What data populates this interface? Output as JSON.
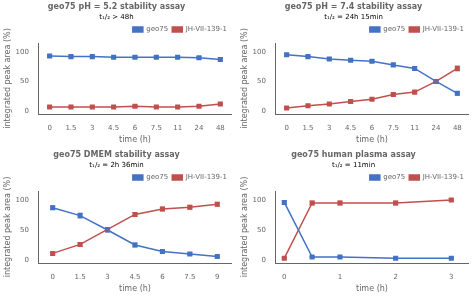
{
  "chart_data": [
    {
      "type": "line",
      "title": "geo75 pH = 5.2 stability assay",
      "annotation": "t₁/₂ > 48h",
      "x_label": "time (h)",
      "y_label": "integrated peak area (%)",
      "categories": [
        "0",
        "1.5",
        "3",
        "4.5",
        "6",
        "7.5",
        "11",
        "24",
        "48"
      ],
      "series": [
        {
          "name": "geo75",
          "color": "#4472C4",
          "marker": "square",
          "values": [
            93,
            92,
            92,
            91,
            91,
            91,
            91,
            90,
            87
          ],
          "errors": [
            2,
            2,
            2,
            2,
            2,
            2,
            2,
            2,
            3
          ]
        },
        {
          "name": "JH-VII-139-1",
          "color": "#C0504D",
          "marker": "square",
          "values": [
            7,
            7,
            7,
            7,
            8,
            7,
            7,
            8,
            12
          ],
          "errors": [
            1,
            1,
            1,
            1,
            2,
            1,
            1,
            1,
            2
          ]
        }
      ],
      "ylim": [
        -5,
        115
      ],
      "yticks": [
        0,
        50,
        100
      ],
      "grid": false,
      "legend": "upper right"
    },
    {
      "type": "line",
      "title": "geo75 pH = 7.4 stability assay",
      "annotation": "t₁/₂ = 24h 15min",
      "x_label": "time (h)",
      "y_label": "integrated peak area (%)",
      "categories": [
        "0",
        "1.5",
        "3",
        "4.5",
        "6",
        "7.5",
        "11",
        "24",
        "48"
      ],
      "series": [
        {
          "name": "geo75",
          "color": "#4472C4",
          "marker": "square",
          "values": [
            95,
            92,
            88,
            86,
            84,
            78,
            72,
            50,
            30
          ],
          "errors": [
            2,
            2,
            2,
            2,
            2,
            2,
            3,
            3,
            3
          ]
        },
        {
          "name": "JH-VII-139-1",
          "color": "#C0504D",
          "marker": "square",
          "values": [
            5,
            9,
            12,
            16,
            20,
            28,
            32,
            50,
            72
          ],
          "errors": [
            1,
            1,
            1,
            2,
            2,
            2,
            2,
            3,
            4
          ]
        }
      ],
      "ylim": [
        -5,
        115
      ],
      "yticks": [
        0,
        50,
        100
      ],
      "grid": false,
      "legend": "upper right"
    },
    {
      "type": "line",
      "title": "geo75 DMEM stability assay",
      "annotation": "t₁/₂ = 2h 36min",
      "x_label": "time (h)",
      "y_label": "integrated peak area (%)",
      "categories": [
        "0",
        "1.5",
        "3",
        "4.5",
        "6",
        "7.5",
        "9"
      ],
      "series": [
        {
          "name": "geo75",
          "color": "#4472C4",
          "marker": "square",
          "values": [
            87,
            74,
            50,
            25,
            14,
            10,
            6
          ],
          "errors": [
            3,
            4,
            3,
            3,
            2,
            2,
            1
          ]
        },
        {
          "name": "JH-VII-139-1",
          "color": "#C0504D",
          "marker": "square",
          "values": [
            11,
            26,
            51,
            76,
            85,
            88,
            93
          ],
          "errors": [
            2,
            3,
            3,
            3,
            3,
            3,
            3
          ]
        }
      ],
      "ylim": [
        -5,
        115
      ],
      "yticks": [
        0,
        50,
        100
      ],
      "grid": false,
      "legend": "upper right"
    },
    {
      "type": "line",
      "title": "geo75 human plasma assay",
      "annotation": "t₁/₂ = 11min",
      "x_label": "time (h)",
      "y_label": "integrated peak area (%)",
      "x": [
        0,
        0.5,
        1,
        2,
        3
      ],
      "series": [
        {
          "name": "geo75",
          "color": "#4472C4",
          "marker": "square",
          "values": [
            96,
            5,
            5,
            3,
            3
          ],
          "errors": [
            3,
            1,
            1,
            1,
            1
          ]
        },
        {
          "name": "JH-VII-139-1",
          "color": "#C0504D",
          "marker": "square",
          "values": [
            3,
            95,
            95,
            95,
            100
          ],
          "errors": [
            1,
            3,
            3,
            3,
            2
          ]
        }
      ],
      "xlim": [
        -0.15,
        3.3
      ],
      "xticks": [
        0,
        1,
        2,
        3
      ],
      "ylim": [
        -5,
        115
      ],
      "yticks": [
        0,
        50,
        100
      ],
      "grid": false,
      "legend": "upper right"
    }
  ]
}
